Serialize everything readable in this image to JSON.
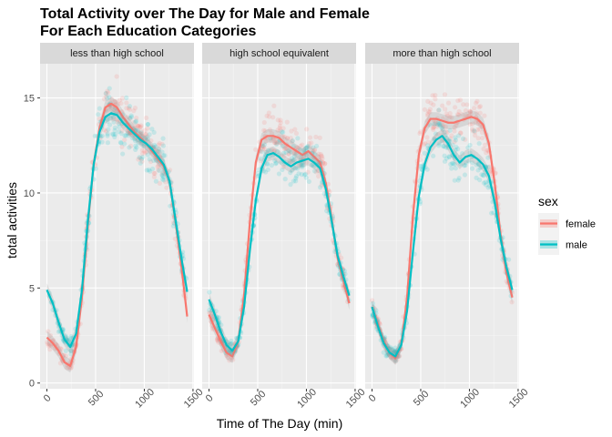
{
  "chart_data": {
    "type": "scatter",
    "title": "Total Activity over The Day for Male and Female\nFor Each Education Categories",
    "xlabel": "Time of The Day (min)",
    "ylabel": "total activities",
    "xlim": [
      -70,
      1510
    ],
    "ylim": [
      -0.3,
      16.8
    ],
    "x_ticks": [
      0,
      500,
      1000,
      1500
    ],
    "y_ticks": [
      0,
      5,
      10,
      15
    ],
    "grid": true,
    "legend": {
      "title": "sex",
      "position": "right",
      "entries": [
        {
          "name": "female",
          "color": "#F8766D"
        },
        {
          "name": "male",
          "color": "#00BFC4"
        }
      ]
    },
    "panels": [
      {
        "strip": "less than high school",
        "series": [
          {
            "name": "female",
            "color": "#F8766D",
            "x": [
              0,
              60,
              120,
              180,
              240,
              300,
              360,
              420,
              480,
              540,
              600,
              660,
              720,
              780,
              840,
              900,
              960,
              1020,
              1080,
              1140,
              1200,
              1260,
              1320,
              1380,
              1440
            ],
            "y": [
              2.4,
              2.1,
              1.7,
              1.1,
              0.9,
              1.9,
              4.5,
              8.3,
              11.5,
              13.4,
              14.5,
              14.7,
              14.5,
              14.0,
              13.6,
              13.2,
              12.9,
              12.6,
              12.2,
              11.8,
              11.4,
              10.6,
              8.5,
              6.2,
              3.5
            ]
          },
          {
            "name": "male",
            "color": "#00BFC4",
            "x": [
              0,
              60,
              120,
              180,
              240,
              300,
              360,
              420,
              480,
              540,
              600,
              660,
              720,
              780,
              840,
              900,
              960,
              1020,
              1080,
              1140,
              1200,
              1260,
              1320,
              1380,
              1440
            ],
            "y": [
              4.9,
              4.2,
              3.2,
              2.3,
              1.9,
              2.6,
              4.9,
              8.5,
              11.5,
              13.2,
              14.0,
              14.2,
              14.1,
              13.7,
              13.4,
              13.1,
              12.8,
              12.6,
              12.3,
              11.9,
              11.5,
              10.6,
              8.6,
              6.6,
              4.8
            ]
          }
        ]
      },
      {
        "strip": "high school equivalent",
        "series": [
          {
            "name": "female",
            "color": "#F8766D",
            "x": [
              0,
              60,
              120,
              180,
              240,
              300,
              360,
              420,
              480,
              540,
              600,
              660,
              720,
              780,
              840,
              900,
              960,
              1020,
              1080,
              1140,
              1200,
              1260,
              1320,
              1380,
              1440
            ],
            "y": [
              3.6,
              2.9,
              2.2,
              1.6,
              1.4,
              2.2,
              4.6,
              8.5,
              11.6,
              12.8,
              13.0,
              13.0,
              12.9,
              12.6,
              12.4,
              12.2,
              12.0,
              12.2,
              11.9,
              11.6,
              10.5,
              8.6,
              6.6,
              5.4,
              4.2
            ]
          },
          {
            "name": "male",
            "color": "#00BFC4",
            "x": [
              0,
              60,
              120,
              180,
              240,
              300,
              360,
              420,
              480,
              540,
              600,
              660,
              720,
              780,
              840,
              900,
              960,
              1020,
              1080,
              1140,
              1200,
              1260,
              1320,
              1380,
              1440
            ],
            "y": [
              4.4,
              3.6,
              2.7,
              2.0,
              1.7,
              2.2,
              4.0,
              7.0,
              9.6,
              11.3,
              12.0,
              12.1,
              11.9,
              11.6,
              11.4,
              11.6,
              11.7,
              11.8,
              11.6,
              11.3,
              10.2,
              8.5,
              6.7,
              5.6,
              4.6
            ]
          }
        ]
      },
      {
        "strip": "more than high school",
        "series": [
          {
            "name": "female",
            "color": "#F8766D",
            "x": [
              0,
              60,
              120,
              180,
              240,
              300,
              360,
              420,
              480,
              540,
              600,
              660,
              720,
              780,
              840,
              900,
              960,
              1020,
              1080,
              1140,
              1200,
              1260,
              1320,
              1380,
              1440
            ],
            "y": [
              4.0,
              3.1,
              2.2,
              1.6,
              1.3,
              2.0,
              4.5,
              8.8,
              12.0,
              13.4,
              13.9,
              13.9,
              13.8,
              13.7,
              13.7,
              13.8,
              13.9,
              14.0,
              13.9,
              13.6,
              12.6,
              10.5,
              7.8,
              5.8,
              4.5
            ]
          },
          {
            "name": "male",
            "color": "#00BFC4",
            "x": [
              0,
              60,
              120,
              180,
              240,
              300,
              360,
              420,
              480,
              540,
              600,
              660,
              720,
              780,
              840,
              900,
              960,
              1020,
              1080,
              1140,
              1200,
              1260,
              1320,
              1380,
              1440
            ],
            "y": [
              4.0,
              3.0,
              2.1,
              1.6,
              1.4,
              2.0,
              3.8,
              6.9,
              9.8,
              11.5,
              12.4,
              12.8,
              13.0,
              12.6,
              12.0,
              11.6,
              11.9,
              12.0,
              11.8,
              11.5,
              10.9,
              9.5,
              7.6,
              6.1,
              4.9
            ]
          }
        ]
      }
    ]
  }
}
